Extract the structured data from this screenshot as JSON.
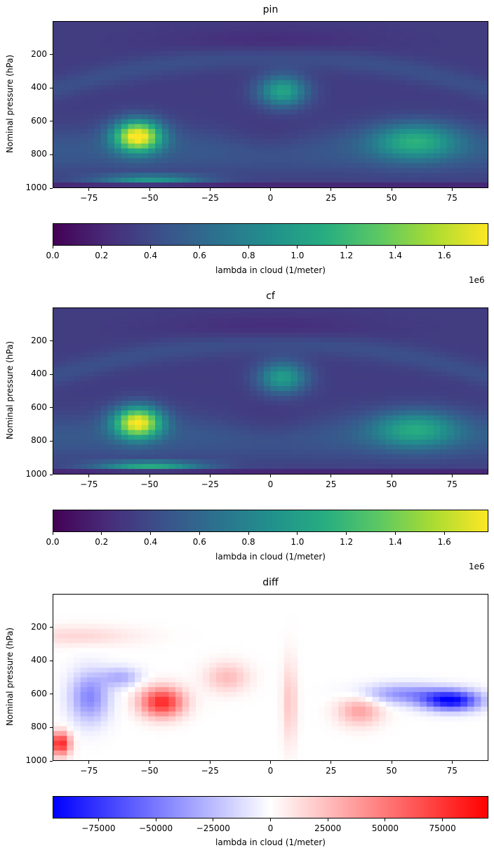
{
  "chart_data": [
    {
      "type": "heatmap",
      "title": "pin",
      "ylabel": "Nominal pressure (hPa)",
      "xlim": [
        -90,
        90
      ],
      "ylim": [
        1000,
        0
      ],
      "xticks": [
        "−75",
        "−50",
        "−25",
        "0",
        "25",
        "50",
        "75"
      ],
      "xtick_values": [
        -75,
        -50,
        -25,
        0,
        25,
        50,
        75
      ],
      "yticks": [
        "200",
        "400",
        "600",
        "800",
        "1000"
      ],
      "ytick_values": [
        200,
        400,
        600,
        800,
        1000
      ],
      "colormap": "viridis",
      "colorbar": {
        "label": "lambda in cloud (1/meter)",
        "range": [
          0,
          1780000.0
        ],
        "ticks": [
          "0.0",
          "0.2",
          "0.4",
          "0.6",
          "0.8",
          "1.0",
          "1.2",
          "1.4",
          "1.6"
        ],
        "tick_values": [
          0,
          0.2,
          0.4,
          0.6,
          0.8,
          1.0,
          1.2,
          1.4,
          1.6
        ],
        "offset_text": "1e6"
      },
      "features": [
        {
          "lat": -55,
          "p": 690,
          "value": 1750000.0
        },
        {
          "lat": 5,
          "p": 420,
          "value": 1050000.0
        },
        {
          "lat": 60,
          "p": 720,
          "value": 1000000.0
        },
        {
          "lat": -50,
          "p": 950,
          "value": 950000.0
        }
      ]
    },
    {
      "type": "heatmap",
      "title": "cf",
      "ylabel": "Nominal pressure (hPa)",
      "xlim": [
        -90,
        90
      ],
      "ylim": [
        1000,
        0
      ],
      "xticks": [
        "−75",
        "−50",
        "−25",
        "0",
        "25",
        "50",
        "75"
      ],
      "xtick_values": [
        -75,
        -50,
        -25,
        0,
        25,
        50,
        75
      ],
      "yticks": [
        "200",
        "400",
        "600",
        "800",
        "1000"
      ],
      "ytick_values": [
        200,
        400,
        600,
        800,
        1000
      ],
      "colormap": "viridis",
      "colorbar": {
        "label": "lambda in cloud (1/meter)",
        "range": [
          0,
          1780000.0
        ],
        "ticks": [
          "0.0",
          "0.2",
          "0.4",
          "0.6",
          "0.8",
          "1.0",
          "1.2",
          "1.4",
          "1.6"
        ],
        "tick_values": [
          0,
          0.2,
          0.4,
          0.6,
          0.8,
          1.0,
          1.2,
          1.4,
          1.6
        ],
        "offset_text": "1e6"
      },
      "features": [
        {
          "lat": -55,
          "p": 690,
          "value": 1700000.0
        },
        {
          "lat": 5,
          "p": 420,
          "value": 1000000.0
        },
        {
          "lat": 60,
          "p": 730,
          "value": 950000.0
        },
        {
          "lat": -50,
          "p": 950,
          "value": 1100000.0
        }
      ]
    },
    {
      "type": "heatmap",
      "title": "diff",
      "ylabel": "Nominal pressure (hPa)",
      "xlim": [
        -90,
        90
      ],
      "ylim": [
        1000,
        0
      ],
      "xticks": [
        "−75",
        "−50",
        "−25",
        "0",
        "25",
        "50",
        "75"
      ],
      "xtick_values": [
        -75,
        -50,
        -25,
        0,
        25,
        50,
        75
      ],
      "yticks": [
        "200",
        "400",
        "600",
        "800",
        "1000"
      ],
      "ytick_values": [
        200,
        400,
        600,
        800,
        1000
      ],
      "colormap": "bwr",
      "colorbar": {
        "label": "lambda in cloud (1/meter)",
        "range": [
          -95000,
          95000
        ],
        "ticks": [
          "−75000",
          "−50000",
          "−25000",
          "0",
          "25000",
          "50000",
          "75000"
        ],
        "tick_values": [
          -75000,
          -50000,
          -25000,
          0,
          25000,
          50000,
          75000
        ],
        "offset_text": ""
      },
      "features": [
        {
          "lat": -45,
          "p": 650,
          "value": 80000
        },
        {
          "lat": -87,
          "p": 900,
          "value": 85000
        },
        {
          "lat": 75,
          "p": 640,
          "value": -90000
        },
        {
          "lat": -75,
          "p": 620,
          "value": -45000
        },
        {
          "lat": 37,
          "p": 700,
          "value": 35000
        },
        {
          "lat": -18,
          "p": 500,
          "value": 25000
        },
        {
          "lat": -80,
          "p": 250,
          "value": 15000
        }
      ]
    }
  ]
}
